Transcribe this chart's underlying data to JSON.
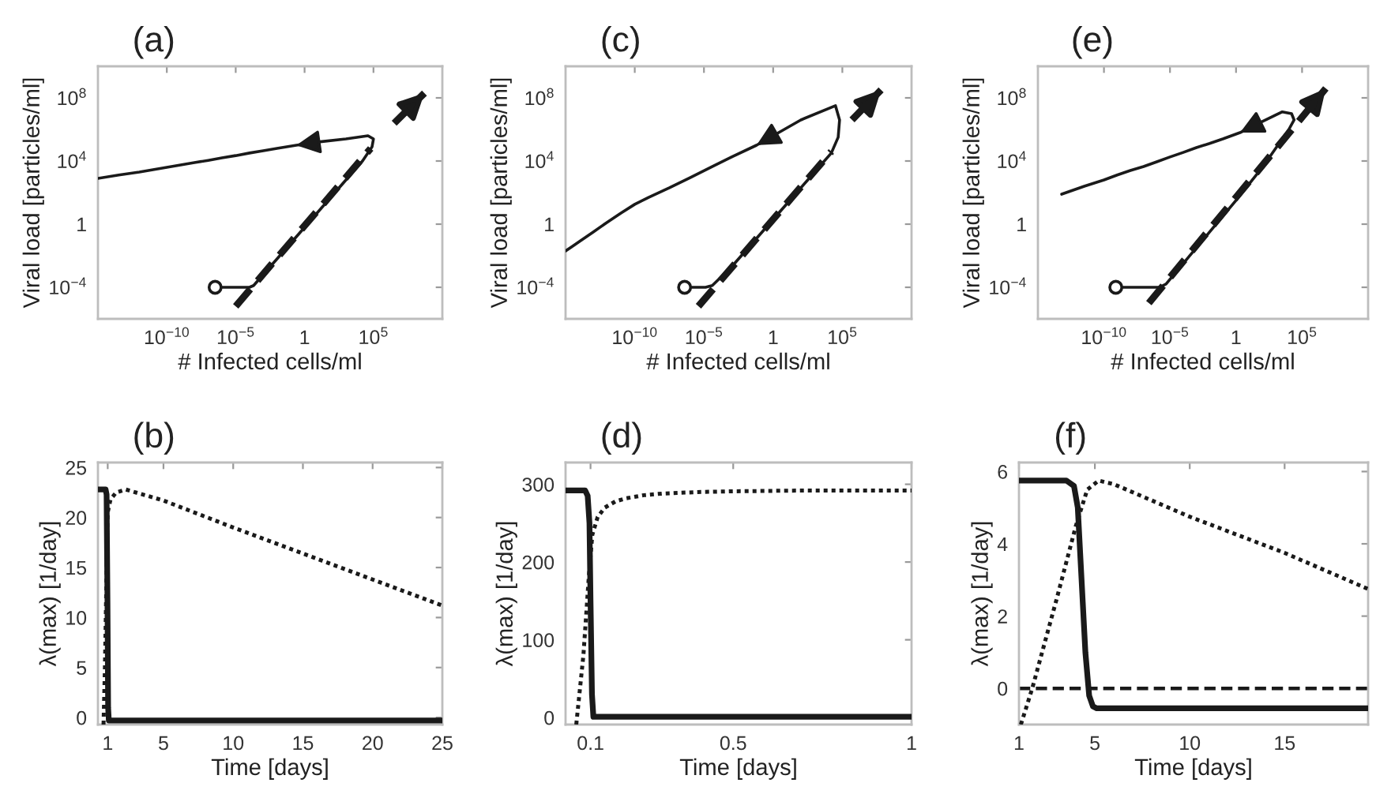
{
  "chart_data": [
    {
      "type": "line",
      "title": "(a)",
      "xlabel": "# Infected cells/ml",
      "ylabel": "Viral load [particles/ml]",
      "log": "xy",
      "xlim": [
        1e-15,
        10000000000.0
      ],
      "ylim": [
        1e-06,
        10000000000.0
      ],
      "xticks": [
        {
          "value": 1e-10,
          "label": "10$^{−10}$"
        },
        {
          "value": 1e-05,
          "label": "10$^{−5}$"
        },
        {
          "value": 1,
          "label": "1"
        },
        {
          "value": 100000.0,
          "label": "10$^{5}$"
        }
      ],
      "yticks": [
        {
          "value": 0.0001,
          "label": "10$^{−4}$"
        },
        {
          "value": 1,
          "label": "1"
        },
        {
          "value": 10000.0,
          "label": "10$^{4}$"
        },
        {
          "value": 100000000.0,
          "label": "10$^{8}$"
        }
      ],
      "series": [
        {
          "line_style": "dashed",
          "color": "#1a1a1a",
          "x": [
            1e-05,
            63000.0,
            null,
            3200000.0,
            500000000.0
          ],
          "values": [
            6.3e-06,
            63000.0,
            null,
            2500000.0,
            200000000.0
          ]
        },
        {
          "line_style": "solid",
          "color": "#1a1a1a",
          "x": [
            3.2e-07,
            0.0001,
            0.0002,
            0.01,
            1,
            100,
            16000.0,
            79000.0,
            100000.0,
            40000.0,
            1000,
            10,
            0.25,
            0.01,
            0.001,
            0.0001,
            1e-05,
            1e-06,
            1e-07,
            1e-08,
            1e-09,
            1e-10,
            1e-12,
            3.2e-14,
            1e-15
          ],
          "values": [
            0.0001,
            0.0001,
            0.00013,
            0.0063,
            0.63,
            63,
            10000.0,
            79000.0,
            250000.0,
            400000.0,
            250000.0,
            160000.0,
            100000.0,
            63000.0,
            45000.0,
            32000.0,
            22000.0,
            16000.0,
            11000.0,
            7900.0,
            5600.0,
            4000.0,
            2000.0,
            1300.0,
            790
          ]
        },
        {
          "type": "scatter",
          "marker": "circle",
          "color": "#1a1a1a",
          "x": [
            3.2e-07
          ],
          "values": [
            0.0001
          ]
        }
      ]
    },
    {
      "type": "line",
      "title": "(c)",
      "xlabel": "# Infected cells/ml",
      "ylabel": "Viral load [particles/ml]",
      "log": "xy",
      "xlim": [
        1e-15,
        10000000000.0
      ],
      "ylim": [
        1e-06,
        10000000000.0
      ],
      "xticks": [
        {
          "value": 1e-10,
          "label": "10$^{−10}$"
        },
        {
          "value": 1e-05,
          "label": "10$^{−5}$"
        },
        {
          "value": 1,
          "label": "1"
        },
        {
          "value": 100000.0,
          "label": "10$^{5}$"
        }
      ],
      "yticks": [
        {
          "value": 0.0001,
          "label": "10$^{−4}$"
        },
        {
          "value": 1,
          "label": "1"
        },
        {
          "value": 10000.0,
          "label": "10$^{4}$"
        },
        {
          "value": 100000000.0,
          "label": "10$^{8}$"
        }
      ],
      "series": [
        {
          "line_style": "dashed",
          "color": "#1a1a1a",
          "x": [
            4e-06,
            16000.0,
            null,
            500000.0,
            63000000.0
          ],
          "values": [
            6.3e-06,
            40000.0,
            null,
            4000000.0,
            320000000.0
          ]
        },
        {
          "line_style": "solid",
          "color": "#1a1a1a",
          "x": [
            4e-07,
            1.3e-05,
            4e-05,
            0.001,
            0.1,
            10,
            1000,
            16000.0,
            50000.0,
            63000.0,
            32000.0,
            100,
            0.063,
            0.001,
            3.2e-05,
            1e-06,
            3.2e-08,
            1e-09,
            1e-10,
            1e-11,
            1e-12,
            1e-13,
            1e-14,
            3.2e-15,
            1e-15
          ],
          "values": [
            0.0001,
            0.0001,
            0.00013,
            0.002,
            0.2,
            20,
            2000.0,
            32000.0,
            320000.0,
            4000000.0,
            32000000.0,
            4000000.0,
            100000.0,
            18000.0,
            4000.0,
            890,
            200,
            50,
            18,
            5.0,
            1.3,
            0.32,
            0.079,
            0.04,
            0.02
          ]
        },
        {
          "type": "scatter",
          "marker": "circle",
          "color": "#1a1a1a",
          "x": [
            4e-07
          ],
          "values": [
            0.0001
          ]
        }
      ]
    },
    {
      "type": "line",
      "title": "(e)",
      "xlabel": "# Infected cells/ml",
      "ylabel": "Viral load [particles/ml]",
      "log": "xy",
      "xlim": [
        1e-15,
        10000000000.0
      ],
      "ylim": [
        1e-06,
        10000000000.0
      ],
      "xticks": [
        {
          "value": 1e-10,
          "label": "10$^{−10}$"
        },
        {
          "value": 1e-05,
          "label": "10$^{−5}$"
        },
        {
          "value": 1,
          "label": "1"
        },
        {
          "value": 100000.0,
          "label": "10$^{5}$"
        }
      ],
      "yticks": [
        {
          "value": 0.0001,
          "label": "10$^{−4}$"
        },
        {
          "value": 1,
          "label": "1"
        },
        {
          "value": 10000.0,
          "label": "10$^{4}$"
        },
        {
          "value": 100000000.0,
          "label": "10$^{8}$"
        }
      ],
      "series": [
        {
          "line_style": "dashed",
          "color": "#1a1a1a",
          "x": [
            2.5e-07,
            6300000.0
          ],
          "values": [
            1e-05,
            400000000.0
          ]
        },
        {
          "line_style": "solid",
          "color": "#1a1a1a",
          "x": [
            7.9e-10,
            1.6e-06,
            5e-06,
            0.0001,
            0.01,
            1,
            100,
            10000.0,
            25000.0,
            16000.0,
            3200.0,
            100,
            2.0,
            0.1,
            0.01,
            0.001,
            0.0001,
            1e-05,
            1e-06,
            1e-07,
            1e-08,
            1e-09,
            1e-10,
            3.2e-12,
            6.3e-14
          ],
          "values": [
            0.0001,
            0.0001,
            0.00016,
            0.0032,
            0.32,
            32,
            4000.0,
            1000000.0,
            4000000.0,
            10000000.0,
            13000000.0,
            3200000.0,
            630000.0,
            250000.0,
            130000.0,
            71000.0,
            35000.0,
            18000.0,
            8900.0,
            4500.0,
            2500.0,
            1300.0,
            630,
            250,
            79
          ]
        },
        {
          "type": "scatter",
          "marker": "circle",
          "color": "#1a1a1a",
          "x": [
            7.9e-10
          ],
          "values": [
            0.0001
          ]
        }
      ]
    },
    {
      "type": "line",
      "title": "(b)",
      "xlabel": "Time [days]",
      "ylabel": "λ(max) [1/day]",
      "xlim": [
        0.3,
        25
      ],
      "ylim": [
        -0.7,
        25.5
      ],
      "xticks": [
        1,
        5,
        10,
        15,
        20,
        25
      ],
      "yticks": [
        0,
        5,
        10,
        15,
        20,
        25
      ],
      "series": [
        {
          "line_style": "solid",
          "color": "#1a1a1a",
          "x": [
            0.3,
            0.85,
            0.92,
            0.98,
            1.03,
            1.08,
            25
          ],
          "values": [
            22.8,
            22.8,
            22.3,
            12,
            1,
            -0.3,
            -0.3
          ]
        },
        {
          "line_style": "dotted",
          "color": "#1a1a1a",
          "x": [
            0.7,
            0.8,
            0.9,
            0.95,
            1.0,
            1.2,
            1.6,
            2.3,
            5,
            10,
            15,
            20,
            25
          ],
          "values": [
            -0.7,
            5,
            13,
            18,
            20.5,
            21.8,
            22.5,
            22.8,
            21.7,
            19.0,
            16.4,
            13.8,
            11.2
          ]
        }
      ]
    },
    {
      "type": "line",
      "title": "(d)",
      "xlabel": "Time [days]",
      "ylabel": "λ(max) [1/day]",
      "xlim": [
        0.03,
        1
      ],
      "ylim": [
        -9,
        328
      ],
      "xticks": [
        0.1,
        0.5,
        1
      ],
      "yticks": [
        0,
        100,
        200,
        300
      ],
      "series": [
        {
          "line_style": "solid",
          "color": "#1a1a1a",
          "x": [
            0.03,
            0.085,
            0.092,
            0.097,
            0.1,
            0.104,
            0.108,
            1
          ],
          "values": [
            292,
            292,
            285,
            250,
            150,
            30,
            1,
            1
          ]
        },
        {
          "line_style": "dotted",
          "color": "#1a1a1a",
          "x": [
            0.06,
            0.08,
            0.095,
            0.105,
            0.12,
            0.14,
            0.17,
            0.2,
            0.25,
            0.3,
            0.4,
            0.5,
            0.7,
            1
          ],
          "values": [
            -9,
            80,
            180,
            235,
            258,
            270,
            278,
            282,
            286,
            288,
            290,
            291,
            292,
            292
          ]
        }
      ]
    },
    {
      "type": "line",
      "title": "(f)",
      "xlabel": "Time [days]",
      "ylabel": "λ(max) [1/day]",
      "xlim": [
        1,
        19.4
      ],
      "ylim": [
        -1,
        6.25
      ],
      "xticks": [
        1,
        5,
        10,
        15
      ],
      "yticks": [
        0,
        2,
        4,
        6
      ],
      "ref_lines": [
        {
          "axis": "y",
          "value": 0,
          "line_style": "dashed",
          "color": "#1a1a1a"
        }
      ],
      "series": [
        {
          "line_style": "solid",
          "color": "#1a1a1a",
          "x": [
            1,
            3.5,
            3.9,
            4.1,
            4.3,
            4.5,
            4.7,
            4.9,
            5.1,
            19.4
          ],
          "values": [
            5.75,
            5.75,
            5.6,
            5.0,
            3.0,
            1.0,
            -0.2,
            -0.5,
            -0.55,
            -0.55
          ]
        },
        {
          "line_style": "dotted",
          "color": "#1a1a1a",
          "x": [
            1.1,
            1.7,
            3,
            4,
            4.6,
            5.2,
            6,
            10,
            15,
            19.4
          ],
          "values": [
            -1,
            0,
            2.5,
            4.5,
            5.5,
            5.75,
            5.65,
            4.75,
            3.75,
            2.75
          ]
        }
      ]
    }
  ]
}
